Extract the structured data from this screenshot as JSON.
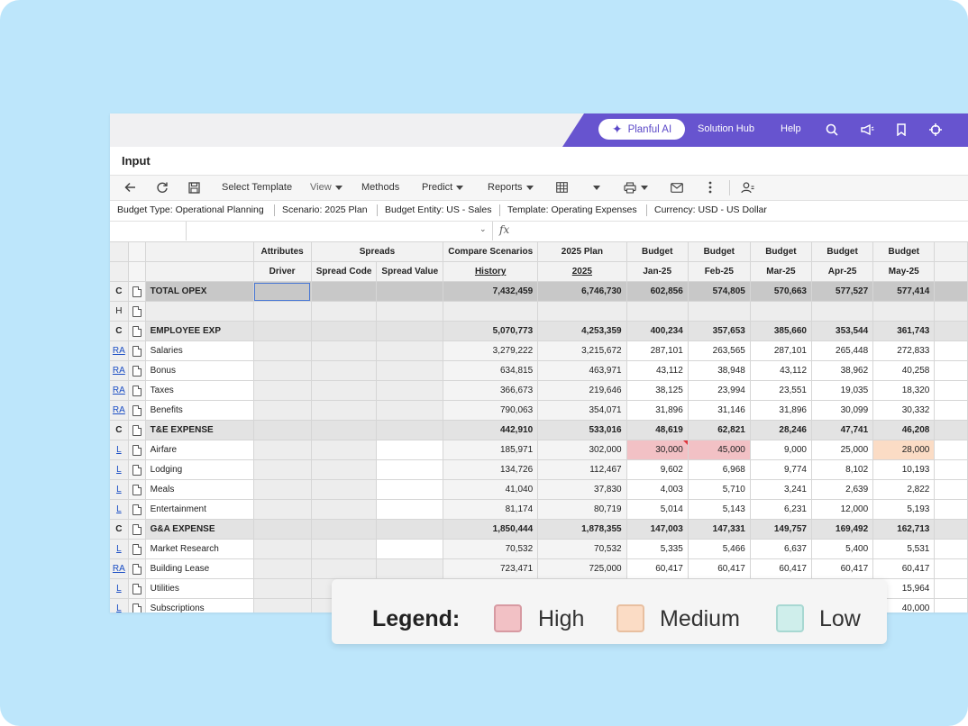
{
  "colors": {
    "background": "#bde6fb",
    "brand": "#6754cf",
    "high": "#f2c1c5",
    "medium": "#fbdcc5",
    "low": "#cfeeeb",
    "selection": "#4a78d4",
    "link": "#1a4dc4"
  },
  "topnav": {
    "ai_label": "Planful AI",
    "ai_icon": "sparkle-icon",
    "solution_hub": "Solution Hub",
    "help": "Help",
    "icons": [
      "search-icon",
      "megaphone-icon",
      "bookmark-icon",
      "crosshair-icon"
    ]
  },
  "title": "Input",
  "toolbar": {
    "select_template": "Select Template",
    "view": "View",
    "methods": "Methods",
    "predict": "Predict",
    "reports": "Reports",
    "icons": [
      "back-arrow-icon",
      "refresh-icon",
      "save-icon",
      "grid-icon",
      "print-icon",
      "mail-icon",
      "more-icon",
      "user-settings-icon"
    ]
  },
  "context": {
    "budget_type_label": "Budget Type:",
    "budget_type": "Operational Planning",
    "scenario_label": "Scenario:",
    "scenario": "2025 Plan",
    "entity_label": "Budget Entity:",
    "entity": "US - Sales",
    "template_label": "Template:",
    "template": "Operating Expenses",
    "currency_label": "Currency:",
    "currency": "USD - US Dollar"
  },
  "formula": {
    "fx": "fx"
  },
  "grid": {
    "header1": {
      "attributes": "Attributes",
      "spreads": "Spreads",
      "compare": "Compare Scenarios",
      "plan": "2025 Plan",
      "budget": "Budget"
    },
    "header2": {
      "driver": "Driver",
      "spread_code": "Spread Code",
      "spread_value": "Spread Value",
      "history": "History",
      "plan_year": "2025",
      "months": [
        "Jan-25",
        "Feb-25",
        "Mar-25",
        "Apr-25",
        "May-25"
      ]
    },
    "rows": [
      {
        "code": "C",
        "name": "TOTAL OPEX",
        "type": "total",
        "history": "7,432,459",
        "plan": "6,746,730",
        "m": [
          "602,856",
          "574,805",
          "570,663",
          "577,527",
          "577,414"
        ]
      },
      {
        "code": "H",
        "name": "",
        "type": "blank",
        "history": "",
        "plan": "",
        "m": [
          "",
          "",
          "",
          "",
          ""
        ]
      },
      {
        "code": "C",
        "name": "EMPLOYEE EXP",
        "type": "cat",
        "history": "5,070,773",
        "plan": "4,253,359",
        "m": [
          "400,234",
          "357,653",
          "385,660",
          "353,544",
          "361,743"
        ]
      },
      {
        "code": "RA",
        "name": "Salaries",
        "type": "normal",
        "history": "3,279,222",
        "plan": "3,215,672",
        "m": [
          "287,101",
          "263,565",
          "287,101",
          "265,448",
          "272,833"
        ]
      },
      {
        "code": "RA",
        "name": "Bonus",
        "type": "normal",
        "history": "634,815",
        "plan": "463,971",
        "m": [
          "43,112",
          "38,948",
          "43,112",
          "38,962",
          "40,258"
        ]
      },
      {
        "code": "RA",
        "name": "Taxes",
        "type": "normal",
        "history": "366,673",
        "plan": "219,646",
        "m": [
          "38,125",
          "23,994",
          "23,551",
          "19,035",
          "18,320"
        ]
      },
      {
        "code": "RA",
        "name": "Benefits",
        "type": "normal",
        "history": "790,063",
        "plan": "354,071",
        "m": [
          "31,896",
          "31,146",
          "31,896",
          "30,099",
          "30,332"
        ]
      },
      {
        "code": "C",
        "name": "T&E EXPENSE",
        "type": "cat",
        "history": "442,910",
        "plan": "533,016",
        "m": [
          "48,619",
          "62,821",
          "28,246",
          "47,741",
          "46,208"
        ]
      },
      {
        "code": "L",
        "name": "Airfare",
        "type": "normal",
        "history": "185,971",
        "plan": "302,000",
        "m": [
          "30,000",
          "45,000",
          "9,000",
          "25,000",
          "28,000"
        ]
      },
      {
        "code": "L",
        "name": "Lodging",
        "type": "normal",
        "history": "134,726",
        "plan": "112,467",
        "m": [
          "9,602",
          "6,968",
          "9,774",
          "8,102",
          "10,193"
        ]
      },
      {
        "code": "L",
        "name": "Meals",
        "type": "normal",
        "history": "41,040",
        "plan": "37,830",
        "m": [
          "4,003",
          "5,710",
          "3,241",
          "2,639",
          "2,822"
        ]
      },
      {
        "code": "L",
        "name": "Entertainment",
        "type": "normal",
        "history": "81,174",
        "plan": "80,719",
        "m": [
          "5,014",
          "5,143",
          "6,231",
          "12,000",
          "5,193"
        ]
      },
      {
        "code": "C",
        "name": "G&A EXPENSE",
        "type": "cat",
        "history": "1,850,444",
        "plan": "1,878,355",
        "m": [
          "147,003",
          "147,331",
          "149,757",
          "169,492",
          "162,713"
        ]
      },
      {
        "code": "L",
        "name": "Market Research",
        "type": "normal",
        "history": "70,532",
        "plan": "70,532",
        "m": [
          "5,335",
          "5,466",
          "6,637",
          "5,400",
          "5,531"
        ]
      },
      {
        "code": "RA",
        "name": "Building Lease",
        "type": "normal",
        "history": "723,471",
        "plan": "725,000",
        "m": [
          "60,417",
          "60,417",
          "60,417",
          "60,417",
          "60,417"
        ]
      },
      {
        "code": "L",
        "name": "Utilities",
        "type": "normal",
        "history": "",
        "plan": "",
        "m": [
          "",
          "",
          "",
          "",
          "15,964"
        ]
      },
      {
        "code": "L",
        "name": "Subscriptions",
        "type": "normal",
        "history": "",
        "plan": "",
        "m": [
          "",
          "",
          "",
          "",
          "40,000"
        ]
      }
    ]
  },
  "legend": {
    "title": "Legend:",
    "items": [
      {
        "label": "High"
      },
      {
        "label": "Medium"
      },
      {
        "label": "Low"
      }
    ]
  }
}
